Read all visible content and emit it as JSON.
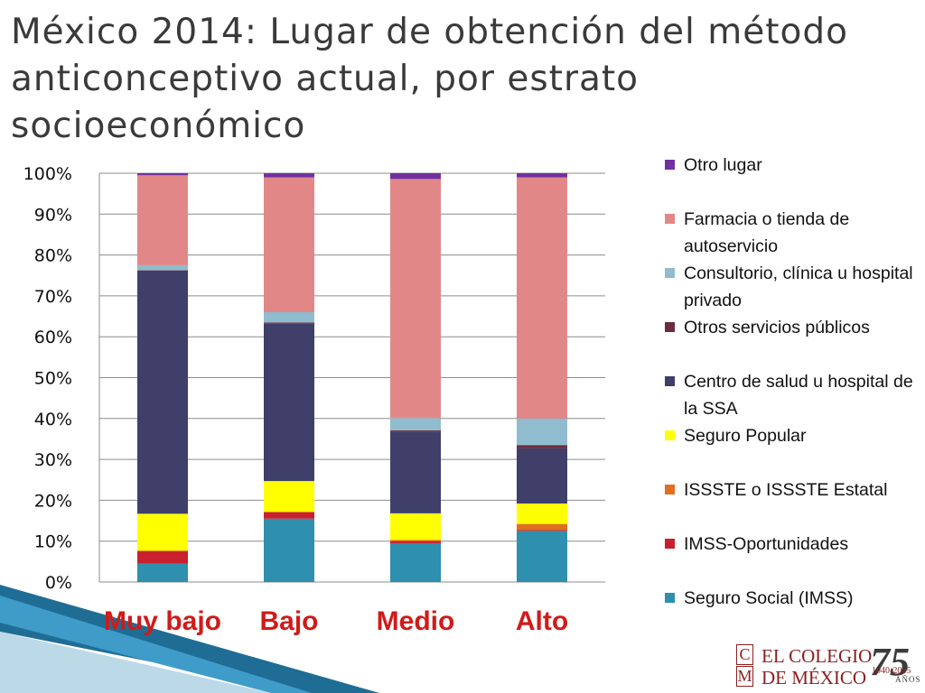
{
  "chart_data": {
    "type": "bar",
    "stacked": true,
    "percent_stacked": true,
    "title": "México 2014: Lugar de obtención del método anticonceptivo actual, por estrato socioeconómico",
    "categories": [
      "Muy bajo",
      "Bajo",
      "Medio",
      "Alto"
    ],
    "ylim": [
      0,
      100
    ],
    "yticks": [
      "0%",
      "10%",
      "20%",
      "30%",
      "40%",
      "50%",
      "60%",
      "70%",
      "80%",
      "90%",
      "100%"
    ],
    "grid": true,
    "legend_position": "right",
    "series": [
      {
        "name": "Seguro Social (IMSS)",
        "color": "#2e8fae",
        "values": [
          4.5,
          15.5,
          9.5,
          12.5
        ]
      },
      {
        "name": "IMSS-Oportunidades",
        "color": "#c8202e",
        "values": [
          3,
          1.5,
          0.5,
          0.2
        ]
      },
      {
        "name": "ISSSTE o ISSSTE Estatal",
        "color": "#e07020",
        "values": [
          0.2,
          0.2,
          0.3,
          1.5
        ]
      },
      {
        "name": "Seguro Popular",
        "color": "#ffff00",
        "values": [
          9,
          7.5,
          6.5,
          5
        ]
      },
      {
        "name": "Centro de salud u hospital de la SSA",
        "color": "#3f3f6a",
        "values": [
          59.5,
          38.5,
          20,
          13.5
        ]
      },
      {
        "name": "Otros servicios públicos",
        "color": "#6e2b3b",
        "values": [
          0.1,
          0.3,
          0.3,
          0.8
        ]
      },
      {
        "name": "Consultorio, clínica u hospital privado",
        "color": "#8fbccf",
        "values": [
          1.2,
          2.5,
          3,
          6.5
        ]
      },
      {
        "name": "Farmacia o tienda de autoservicio",
        "color": "#e28788",
        "values": [
          22,
          33,
          58.5,
          59
        ]
      },
      {
        "name": "Otro lugar",
        "color": "#7030a0",
        "values": [
          0.5,
          1,
          1.4,
          1
        ]
      }
    ]
  },
  "legend": {
    "items": [
      {
        "label": "Otro lugar",
        "color": "#7030a0"
      },
      {
        "label": "Farmacia o tienda de autoservicio",
        "color": "#e28788"
      },
      {
        "label": "Consultorio, clínica u hospital privado",
        "color": "#8fbccf"
      },
      {
        "label": "Otros servicios públicos",
        "color": "#6e2b3b"
      },
      {
        "label": "Centro de salud u hospital de la SSA",
        "color": "#3f3f6a"
      },
      {
        "label": "Seguro Popular",
        "color": "#ffff00"
      },
      {
        "label": "ISSSTE o ISSSTE Estatal",
        "color": "#e07020"
      },
      {
        "label": "IMSS-Oportunidades",
        "color": "#c8202e"
      },
      {
        "label": "Seguro Social (IMSS)",
        "color": "#2e8fae"
      }
    ]
  },
  "logo": {
    "box_top": "C",
    "box_bottom": "M",
    "line1": "EL COLEGIO",
    "line2": "DE MÉXICO",
    "anniversary": "75",
    "years": "1940-2015",
    "anos": "AÑOS"
  }
}
